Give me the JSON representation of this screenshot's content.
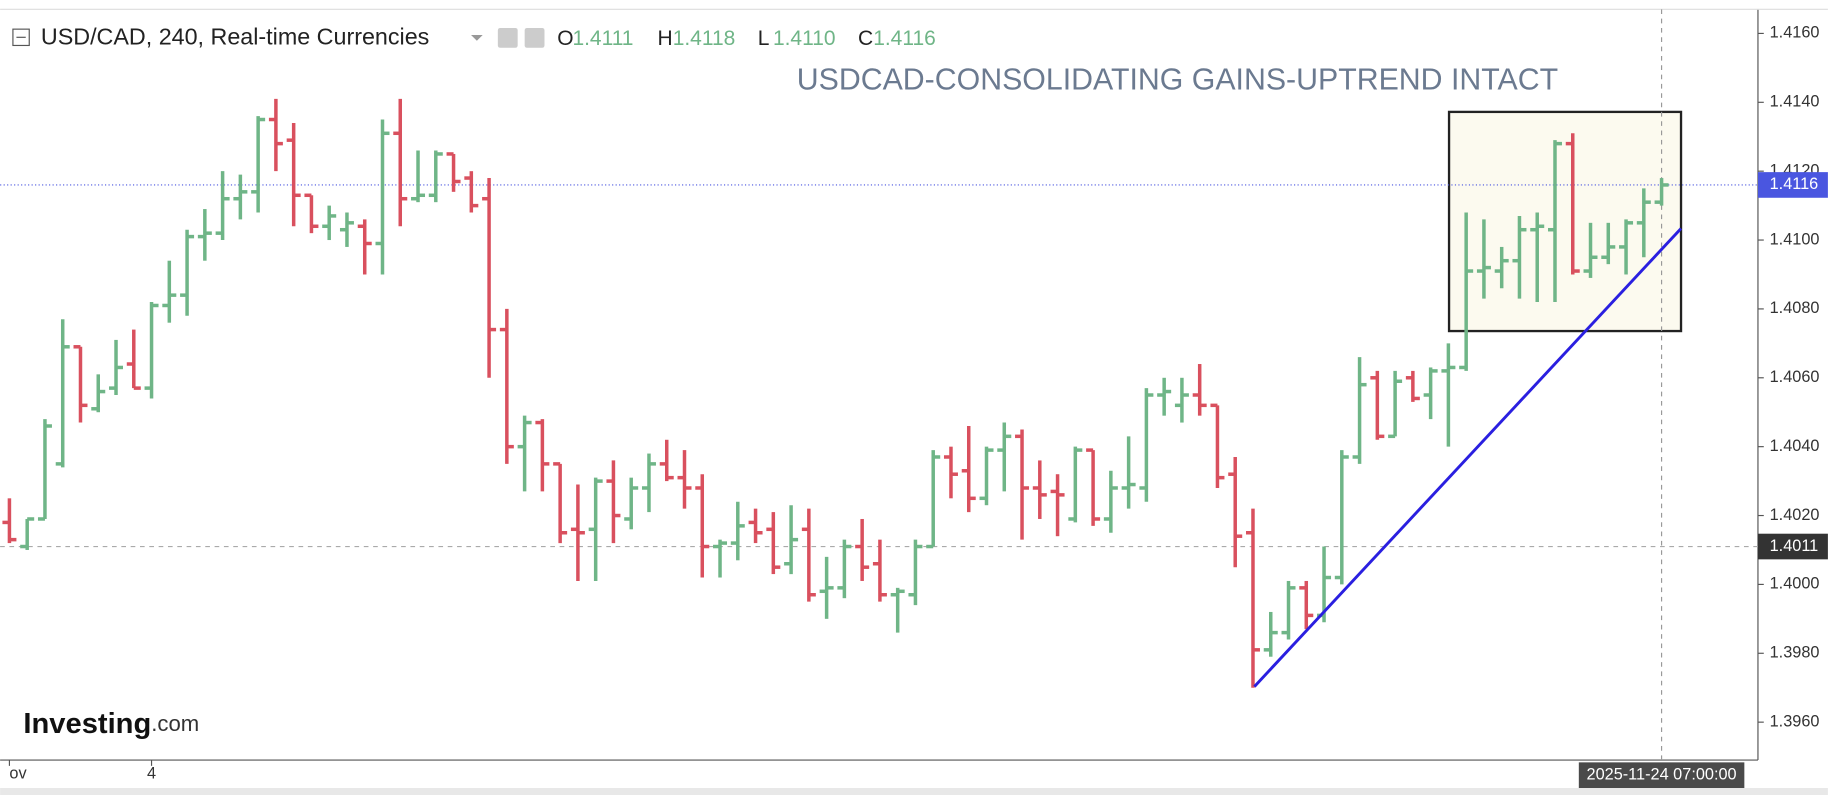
{
  "chart_data": {
    "type": "ohlc",
    "symbol": "USD/CAD, 240, Real-time Currencies",
    "header_ohlc": [
      {
        "label": "O",
        "value": "1.4111"
      },
      {
        "label": "H",
        "value": "1.4118"
      },
      {
        "label": "L",
        "value": "1.4110"
      },
      {
        "label": "C",
        "value": "1.4116"
      }
    ],
    "title": "USDCAD-CONSOLIDATING GAINS-UPTREND INTACT",
    "logo": {
      "name": "Investing",
      "suffix": ".com"
    },
    "up_color": "#6fb587",
    "down_color": "#d9505e",
    "categories": [
      "ov",
      null,
      null,
      null,
      null,
      null,
      null,
      null,
      "4",
      null,
      null,
      null,
      null,
      null,
      null,
      null,
      null,
      null,
      null,
      null,
      null,
      null,
      null,
      null,
      null,
      null,
      null,
      null,
      null,
      null,
      null,
      null,
      null,
      null,
      null,
      null,
      null,
      null,
      null,
      null,
      null,
      null,
      null,
      null,
      null,
      null,
      null,
      null,
      null,
      null,
      null,
      null,
      null,
      null,
      null,
      null,
      null,
      null,
      null,
      null,
      null,
      null,
      null,
      null,
      null,
      null,
      null,
      null,
      null,
      null,
      null,
      null,
      null,
      null,
      null,
      null,
      null,
      null,
      null,
      null,
      null,
      null,
      null,
      null,
      null,
      null,
      null,
      null,
      null,
      null,
      null,
      null,
      null,
      null
    ],
    "open": [
      1.4018,
      1.4011,
      1.4019,
      1.4035,
      1.4069,
      1.4051,
      1.4057,
      1.4064,
      1.4057,
      1.4081,
      1.4084,
      1.4101,
      1.4102,
      1.4112,
      1.4114,
      1.4135,
      1.4129,
      1.4113,
      1.4104,
      1.4103,
      1.4104,
      1.4099,
      1.4131,
      1.4112,
      1.4113,
      1.4125,
      1.4118,
      1.4112,
      1.4074,
      1.404,
      1.4047,
      1.4035,
      1.4016,
      1.4016,
      1.403,
      1.4019,
      1.4028,
      1.4035,
      1.4031,
      1.4028,
      1.4011,
      1.4012,
      1.4018,
      1.4016,
      1.4006,
      1.4016,
      1.3998,
      1.3999,
      1.4011,
      1.4006,
      1.3997,
      1.3997,
      1.4011,
      1.4037,
      1.4033,
      1.4025,
      1.4039,
      1.4043,
      1.4028,
      1.4027,
      1.4019,
      1.4039,
      1.4019,
      1.4028,
      1.4028,
      1.4055,
      1.4052,
      1.4055,
      1.4052,
      1.4032,
      1.4015,
      1.3981,
      1.3986,
      1.3999,
      1.3991,
      1.4002,
      1.4037,
      1.406,
      1.4043,
      1.406,
      1.4055,
      1.4062,
      1.4063,
      1.4091,
      1.4091,
      1.4094,
      1.4103,
      1.4103,
      1.4128,
      1.4091,
      1.4095,
      1.4098,
      1.4105,
      1.4111
    ],
    "high": [
      1.4025,
      1.4019,
      1.4048,
      1.4077,
      1.4069,
      1.4061,
      1.4071,
      1.4074,
      1.4082,
      1.4094,
      1.4103,
      1.4109,
      1.412,
      1.4119,
      1.4136,
      1.4141,
      1.4134,
      1.4113,
      1.411,
      1.4108,
      1.4106,
      1.4135,
      1.4141,
      1.4126,
      1.4126,
      1.4125,
      1.412,
      1.4118,
      1.408,
      1.4049,
      1.4048,
      1.4035,
      1.4029,
      1.4031,
      1.4036,
      1.4031,
      1.4038,
      1.4042,
      1.4039,
      1.4032,
      1.4013,
      1.4024,
      1.4022,
      1.4021,
      1.4023,
      1.4022,
      1.4008,
      1.4013,
      1.4019,
      1.4013,
      1.3999,
      1.4013,
      1.4039,
      1.404,
      1.4046,
      1.404,
      1.4047,
      1.4045,
      1.4036,
      1.4032,
      1.404,
      1.4039,
      1.4033,
      1.4043,
      1.4057,
      1.406,
      1.406,
      1.4064,
      1.4052,
      1.4037,
      1.4022,
      1.3992,
      1.4001,
      1.4001,
      1.4011,
      1.4039,
      1.4066,
      1.4062,
      1.4062,
      1.4062,
      1.4063,
      1.407,
      1.4108,
      1.4106,
      1.4098,
      1.4107,
      1.4108,
      1.4129,
      1.4131,
      1.4105,
      1.4105,
      1.4106,
      1.4115,
      1.4118
    ],
    "low": [
      1.4012,
      1.401,
      1.4019,
      1.4034,
      1.4047,
      1.405,
      1.4055,
      1.4057,
      1.4054,
      1.4076,
      1.4078,
      1.4094,
      1.41,
      1.4106,
      1.4108,
      1.412,
      1.4104,
      1.4102,
      1.41,
      1.4098,
      1.409,
      1.409,
      1.4104,
      1.4111,
      1.4111,
      1.4114,
      1.4108,
      1.406,
      1.4035,
      1.4027,
      1.4027,
      1.4012,
      1.4001,
      1.4001,
      1.4012,
      1.4016,
      1.4021,
      1.403,
      1.4022,
      1.4002,
      1.4002,
      1.4007,
      1.4012,
      1.4003,
      1.4003,
      1.3995,
      1.399,
      1.3996,
      1.4001,
      1.3995,
      1.3986,
      1.3994,
      1.4011,
      1.4025,
      1.4021,
      1.4023,
      1.4027,
      1.4013,
      1.4019,
      1.4014,
      1.4018,
      1.4017,
      1.4015,
      1.4022,
      1.4024,
      1.4049,
      1.4047,
      1.4049,
      1.4028,
      1.4005,
      1.397,
      1.3979,
      1.3984,
      1.3987,
      1.3989,
      1.4,
      1.4035,
      1.4042,
      1.4043,
      1.4053,
      1.4048,
      1.404,
      1.4062,
      1.4083,
      1.4086,
      1.4083,
      1.4082,
      1.4082,
      1.409,
      1.4089,
      1.4093,
      1.409,
      1.4095,
      1.411
    ],
    "close": [
      1.4013,
      1.4019,
      1.4046,
      1.4069,
      1.4052,
      1.4056,
      1.4063,
      1.4057,
      1.4081,
      1.4084,
      1.4101,
      1.4102,
      1.4112,
      1.4114,
      1.4135,
      1.4128,
      1.4113,
      1.4104,
      1.4107,
      1.4105,
      1.4099,
      1.4131,
      1.4112,
      1.4113,
      1.4125,
      1.4117,
      1.411,
      1.4074,
      1.404,
      1.4047,
      1.4035,
      1.4015,
      1.4015,
      1.403,
      1.402,
      1.4028,
      1.4035,
      1.4031,
      1.4028,
      1.4011,
      1.4012,
      1.4017,
      1.4015,
      1.4005,
      1.4013,
      1.3997,
      1.3999,
      1.4011,
      1.4005,
      1.3997,
      1.3998,
      1.4011,
      1.4037,
      1.4032,
      1.4025,
      1.4039,
      1.4043,
      1.4028,
      1.4026,
      1.4026,
      1.4039,
      1.4019,
      1.4028,
      1.4029,
      1.4055,
      1.4056,
      1.4055,
      1.4052,
      1.4031,
      1.4014,
      1.3981,
      1.3986,
      1.3999,
      1.3991,
      1.4002,
      1.4037,
      1.4058,
      1.4043,
      1.4059,
      1.4054,
      1.4062,
      1.4063,
      1.4091,
      1.4092,
      1.4094,
      1.4103,
      1.4104,
      1.4128,
      1.4091,
      1.4095,
      1.4098,
      1.4105,
      1.4111,
      1.4116
    ],
    "ylim": [
      1.3949,
      1.4167
    ],
    "yticks": [
      {
        "value": 1.396,
        "label": "1.3960"
      },
      {
        "value": 1.398,
        "label": "1.3980"
      },
      {
        "value": 1.4,
        "label": "1.4000"
      },
      {
        "value": 1.402,
        "label": "1.4020"
      },
      {
        "value": 1.404,
        "label": "1.4040"
      },
      {
        "value": 1.406,
        "label": "1.4060"
      },
      {
        "value": 1.408,
        "label": "1.4080"
      },
      {
        "value": 1.41,
        "label": "1.4100"
      },
      {
        "value": 1.412,
        "label": "1.4120"
      },
      {
        "value": 1.414,
        "label": "1.4140"
      },
      {
        "value": 1.416,
        "label": "1.4160"
      }
    ],
    "price_lines": [
      {
        "value": 1.4116,
        "color": "#4a56e0"
      },
      {
        "value": 1.4011,
        "color": "#333333"
      }
    ],
    "crosshair_time": "2025-11-24 07:00:00"
  }
}
